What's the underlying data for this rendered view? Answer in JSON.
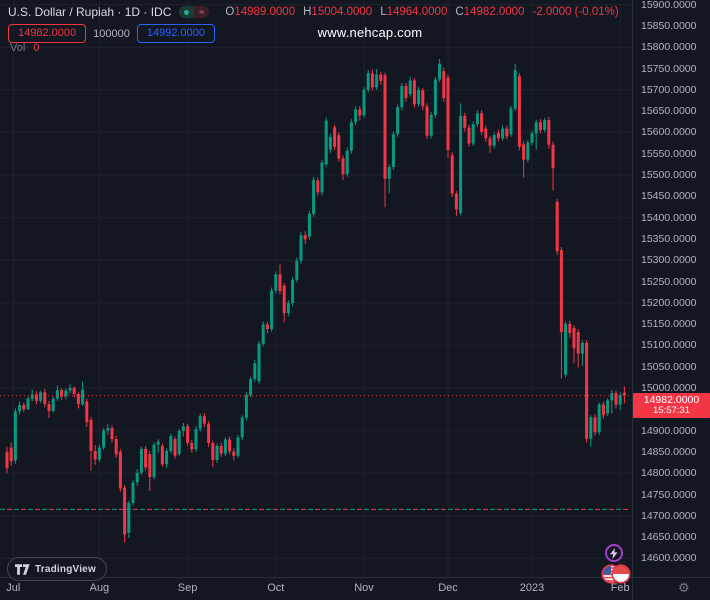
{
  "header": {
    "symbol_title": "U.S. Dollar / Rupiah · 1D · IDC",
    "market_status_glyph": "≈",
    "ohlc": {
      "o_label": "O",
      "o_value": "14989.0000",
      "h_label": "H",
      "h_value": "15004.0000",
      "l_label": "L",
      "l_value": "14964.0000",
      "c_label": "C",
      "c_value": "14982.0000",
      "change_value": "-2.0000 (-0.01%)"
    },
    "sell_price": "14982.0000",
    "quantity": "100000",
    "buy_price": "14992.0000",
    "volume_label": "Vol",
    "volume_value": "0"
  },
  "watermark": "www.nehcap.com",
  "footer": {
    "logo_text": "TradingView"
  },
  "price_tag": {
    "price": "14982.0000",
    "time": "15:57:31"
  },
  "colors": {
    "background": "#131722",
    "grid": "#1e222d",
    "up": "#089981",
    "down": "#f23645",
    "sell_accent": "#f23645",
    "buy_accent": "#2962ff",
    "axis_text": "#b2b5be"
  },
  "chart_data": {
    "type": "candlestick",
    "title": "U.S. Dollar / Rupiah, 1D, IDC",
    "y_axis": {
      "min": 14600,
      "max": 15900,
      "tick_step": 50,
      "grid_step": 100,
      "tick_format_decimals": 4
    },
    "x_labels": [
      {
        "label": "Jul",
        "i": 1.5
      },
      {
        "label": "Aug",
        "i": 22
      },
      {
        "label": "Sep",
        "i": 43
      },
      {
        "label": "Oct",
        "i": 64
      },
      {
        "label": "Nov",
        "i": 85
      },
      {
        "label": "Dec",
        "i": 105
      },
      {
        "label": "2023",
        "i": 125
      },
      {
        "label": "Feb",
        "i": 146
      }
    ],
    "last_price": 14982,
    "last_time": "15:57:31",
    "support_level": 14715,
    "grid": true,
    "legend_position": "none",
    "candles": [
      [
        14850,
        14862,
        14800,
        14812
      ],
      [
        14860,
        14872,
        14818,
        14828
      ],
      [
        14830,
        14952,
        14822,
        14945
      ],
      [
        14945,
        14968,
        14938,
        14960
      ],
      [
        14960,
        14966,
        14944,
        14950
      ],
      [
        14950,
        14980,
        14948,
        14975
      ],
      [
        14975,
        14996,
        14968,
        14985
      ],
      [
        14985,
        14992,
        14962,
        14970
      ],
      [
        14970,
        14994,
        14965,
        14990
      ],
      [
        14990,
        14998,
        14955,
        14962
      ],
      [
        14962,
        14970,
        14930,
        14946
      ],
      [
        14946,
        14980,
        14942,
        14975
      ],
      [
        14975,
        15006,
        14970,
        14995
      ],
      [
        14995,
        15000,
        14972,
        14980
      ],
      [
        14980,
        14999,
        14974,
        14994
      ],
      [
        14994,
        15008,
        14985,
        15000
      ],
      [
        15000,
        15004,
        14978,
        14986
      ],
      [
        14986,
        14990,
        14952,
        14962
      ],
      [
        14962,
        15016,
        14958,
        14996
      ],
      [
        14968,
        14975,
        14908,
        14920
      ],
      [
        14925,
        14932,
        14806,
        14852
      ],
      [
        14852,
        14866,
        14820,
        14832
      ],
      [
        14832,
        14868,
        14826,
        14860
      ],
      [
        14860,
        14906,
        14855,
        14900
      ],
      [
        14900,
        14916,
        14890,
        14906
      ],
      [
        14906,
        14912,
        14872,
        14880
      ],
      [
        14880,
        14888,
        14836,
        14844
      ],
      [
        14850,
        14856,
        14756,
        14764
      ],
      [
        14766,
        14772,
        14637,
        14656
      ],
      [
        14660,
        14736,
        14648,
        14730
      ],
      [
        14730,
        14784,
        14724,
        14778
      ],
      [
        14778,
        14810,
        14770,
        14801
      ],
      [
        14801,
        14862,
        14796,
        14857
      ],
      [
        14857,
        14864,
        14806,
        14813
      ],
      [
        14845,
        14852,
        14758,
        14791
      ],
      [
        14791,
        14872,
        14786,
        14867
      ],
      [
        14867,
        14880,
        14848,
        14874
      ],
      [
        14864,
        14870,
        14815,
        14821
      ],
      [
        14821,
        14858,
        14812,
        14852
      ],
      [
        14852,
        14893,
        14846,
        14887
      ],
      [
        14880,
        14886,
        14834,
        14841
      ],
      [
        14845,
        14904,
        14840,
        14899
      ],
      [
        14899,
        14918,
        14886,
        14910
      ],
      [
        14910,
        14916,
        14864,
        14871
      ],
      [
        14871,
        14878,
        14848,
        14856
      ],
      [
        14856,
        14910,
        14850,
        14904
      ],
      [
        14904,
        14940,
        14898,
        14934
      ],
      [
        14934,
        14941,
        14908,
        14916
      ],
      [
        14916,
        14922,
        14862,
        14871
      ],
      [
        14871,
        14876,
        14814,
        14831
      ],
      [
        14831,
        14870,
        14824,
        14864
      ],
      [
        14864,
        14872,
        14838,
        14846
      ],
      [
        14846,
        14884,
        14840,
        14879
      ],
      [
        14879,
        14886,
        14844,
        14851
      ],
      [
        14851,
        14858,
        14830,
        14841
      ],
      [
        14841,
        14890,
        14836,
        14884
      ],
      [
        14884,
        14936,
        14878,
        14930
      ],
      [
        14930,
        14990,
        14924,
        14984
      ],
      [
        14984,
        15026,
        14978,
        15021
      ],
      [
        15021,
        15066,
        15014,
        15058
      ],
      [
        15016,
        15110,
        15010,
        15104
      ],
      [
        15104,
        15156,
        15098,
        15149
      ],
      [
        15149,
        15156,
        15128,
        15138
      ],
      [
        15138,
        15236,
        15132,
        15229
      ],
      [
        15229,
        15274,
        15222,
        15267
      ],
      [
        15267,
        15290,
        15220,
        15228
      ],
      [
        15240,
        15246,
        15154,
        15176
      ],
      [
        15176,
        15206,
        15168,
        15199
      ],
      [
        15199,
        15260,
        15192,
        15254
      ],
      [
        15254,
        15306,
        15248,
        15299
      ],
      [
        15299,
        15366,
        15292,
        15359
      ],
      [
        15359,
        15368,
        15338,
        15349
      ],
      [
        15355,
        15416,
        15348,
        15409
      ],
      [
        15409,
        15496,
        15402,
        15489
      ],
      [
        15487,
        15494,
        15452,
        15459
      ],
      [
        15459,
        15536,
        15452,
        15529
      ],
      [
        15525,
        15635,
        15518,
        15628
      ],
      [
        15560,
        15596,
        15552,
        15589
      ],
      [
        15612,
        15618,
        15558,
        15566
      ],
      [
        15593,
        15600,
        15532,
        15539
      ],
      [
        15539,
        15546,
        15488,
        15502
      ],
      [
        15502,
        15564,
        15496,
        15557
      ],
      [
        15557,
        15631,
        15550,
        15624
      ],
      [
        15624,
        15661,
        15617,
        15654
      ],
      [
        15654,
        15662,
        15628,
        15640
      ],
      [
        15640,
        15706,
        15634,
        15700
      ],
      [
        15700,
        15746,
        15694,
        15739
      ],
      [
        15739,
        15748,
        15698,
        15706
      ],
      [
        15706,
        15749,
        15700,
        15736
      ],
      [
        15736,
        15742,
        15712,
        15721
      ],
      [
        15734,
        15740,
        15424,
        15491
      ],
      [
        15491,
        15526,
        15458,
        15519
      ],
      [
        15519,
        15602,
        15512,
        15596
      ],
      [
        15596,
        15666,
        15590,
        15659
      ],
      [
        15659,
        15716,
        15652,
        15709
      ],
      [
        15709,
        15716,
        15672,
        15681
      ],
      [
        15690,
        15731,
        15684,
        15722
      ],
      [
        15722,
        15728,
        15658,
        15666
      ],
      [
        15666,
        15706,
        15660,
        15699
      ],
      [
        15699,
        15704,
        15652,
        15661
      ],
      [
        15661,
        15668,
        15584,
        15592
      ],
      [
        15592,
        15648,
        15586,
        15641
      ],
      [
        15641,
        15730,
        15634,
        15724
      ],
      [
        15724,
        15772,
        15718,
        15761
      ],
      [
        15744,
        15752,
        15672,
        15681
      ],
      [
        15729,
        15736,
        15540,
        15558
      ],
      [
        15546,
        15553,
        15448,
        15456
      ],
      [
        15456,
        15462,
        15404,
        15419
      ],
      [
        15411,
        15668,
        15405,
        15639
      ],
      [
        15639,
        15646,
        15602,
        15611
      ],
      [
        15611,
        15618,
        15566,
        15574
      ],
      [
        15574,
        15626,
        15568,
        15619
      ],
      [
        15619,
        15652,
        15612,
        15645
      ],
      [
        15645,
        15652,
        15594,
        15601
      ],
      [
        15609,
        15616,
        15578,
        15586
      ],
      [
        15586,
        15592,
        15552,
        15569
      ],
      [
        15569,
        15600,
        15562,
        15594
      ],
      [
        15599,
        15606,
        15578,
        15586
      ],
      [
        15586,
        15616,
        15580,
        15609
      ],
      [
        15609,
        15616,
        15584,
        15591
      ],
      [
        15596,
        15662,
        15590,
        15656
      ],
      [
        15656,
        15761,
        15650,
        15746
      ],
      [
        15732,
        15739,
        15558,
        15566
      ],
      [
        15572,
        15579,
        15494,
        15536
      ],
      [
        15536,
        15582,
        15530,
        15576
      ],
      [
        15576,
        15604,
        15570,
        15598
      ],
      [
        15598,
        15630,
        15560,
        15624
      ],
      [
        15624,
        15631,
        15598,
        15606
      ],
      [
        15606,
        15634,
        15600,
        15629
      ],
      [
        15629,
        15636,
        15562,
        15571
      ],
      [
        15571,
        15578,
        15464,
        15516
      ],
      [
        15437,
        15444,
        15312,
        15321
      ],
      [
        15324,
        15331,
        15022,
        15131
      ],
      [
        15031,
        15156,
        15025,
        15151
      ],
      [
        15151,
        15158,
        15118,
        15129
      ],
      [
        15141,
        15148,
        15058,
        15093
      ],
      [
        15131,
        15138,
        15048,
        15081
      ],
      [
        15081,
        15112,
        15052,
        15106
      ],
      [
        15106,
        15113,
        14872,
        14881
      ],
      [
        14881,
        14936,
        14862,
        14931
      ],
      [
        14931,
        14938,
        14888,
        14896
      ],
      [
        14896,
        14966,
        14890,
        14961
      ],
      [
        14961,
        14968,
        14928,
        14936
      ],
      [
        14941,
        14976,
        14934,
        14971
      ],
      [
        14971,
        14996,
        14940,
        14988
      ],
      [
        14988,
        14994,
        14952,
        14961
      ],
      [
        14961,
        14990,
        14948,
        14984
      ],
      [
        14989,
        15004,
        14964,
        14982
      ]
    ]
  }
}
